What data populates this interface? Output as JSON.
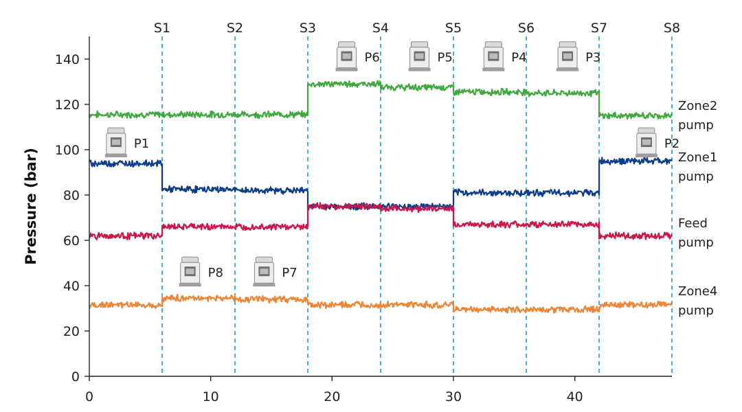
{
  "chart_data": {
    "type": "line",
    "title": "",
    "xlabel": "",
    "ylabel": "Pressure (bar)",
    "xlim": [
      0,
      48
    ],
    "ylim": [
      0,
      150
    ],
    "xticks": [
      0,
      10,
      20,
      30,
      40
    ],
    "yticks": [
      0,
      20,
      40,
      60,
      80,
      100,
      120,
      140
    ],
    "grid": false,
    "stages": [
      {
        "label": "S1",
        "x": 6
      },
      {
        "label": "S2",
        "x": 12
      },
      {
        "label": "S3",
        "x": 18
      },
      {
        "label": "S4",
        "x": 24
      },
      {
        "label": "S5",
        "x": 30
      },
      {
        "label": "S6",
        "x": 36
      },
      {
        "label": "S7",
        "x": 42
      },
      {
        "label": "S8",
        "x": 48
      }
    ],
    "series": [
      {
        "name": "Zone2 pump",
        "color": "#3fa83f",
        "segments": [
          {
            "x0": 0,
            "x1": 18,
            "y": 115.5
          },
          {
            "x0": 18,
            "x1": 24,
            "y": 129
          },
          {
            "x0": 24,
            "x1": 30,
            "y": 127.5
          },
          {
            "x0": 30,
            "x1": 36,
            "y": 125.5
          },
          {
            "x0": 36,
            "x1": 42,
            "y": 125
          },
          {
            "x0": 42,
            "x1": 48,
            "y": 115
          }
        ],
        "label_lines": [
          "Zone2",
          "pump"
        ]
      },
      {
        "name": "Zone1 pump",
        "color": "#0c3c8c",
        "segments": [
          {
            "x0": 0,
            "x1": 6,
            "y": 94
          },
          {
            "x0": 6,
            "x1": 12,
            "y": 82.5
          },
          {
            "x0": 12,
            "x1": 18,
            "y": 82
          },
          {
            "x0": 18,
            "x1": 24,
            "y": 75
          },
          {
            "x0": 24,
            "x1": 30,
            "y": 75
          },
          {
            "x0": 30,
            "x1": 36,
            "y": 81
          },
          {
            "x0": 36,
            "x1": 42,
            "y": 81
          },
          {
            "x0": 42,
            "x1": 48,
            "y": 95
          }
        ],
        "label_lines": [
          "Zone1",
          "pump"
        ]
      },
      {
        "name": "Feed pump",
        "color": "#cc1548",
        "segments": [
          {
            "x0": 0,
            "x1": 6,
            "y": 62
          },
          {
            "x0": 6,
            "x1": 12,
            "y": 66
          },
          {
            "x0": 12,
            "x1": 18,
            "y": 66
          },
          {
            "x0": 18,
            "x1": 24,
            "y": 75
          },
          {
            "x0": 24,
            "x1": 30,
            "y": 74
          },
          {
            "x0": 30,
            "x1": 36,
            "y": 67
          },
          {
            "x0": 36,
            "x1": 42,
            "y": 67
          },
          {
            "x0": 42,
            "x1": 48,
            "y": 62
          }
        ],
        "label_lines": [
          "Feed",
          "pump"
        ]
      },
      {
        "name": "Zone4 pump",
        "color": "#ef8533",
        "segments": [
          {
            "x0": 0,
            "x1": 6,
            "y": 31.5
          },
          {
            "x0": 6,
            "x1": 12,
            "y": 34.5
          },
          {
            "x0": 12,
            "x1": 18,
            "y": 34
          },
          {
            "x0": 18,
            "x1": 24,
            "y": 31.5
          },
          {
            "x0": 24,
            "x1": 30,
            "y": 31.5
          },
          {
            "x0": 30,
            "x1": 36,
            "y": 29.5
          },
          {
            "x0": 36,
            "x1": 42,
            "y": 29.5
          },
          {
            "x0": 42,
            "x1": 48,
            "y": 31.5
          }
        ],
        "label_lines": [
          "Zone4",
          "pump"
        ]
      }
    ],
    "pump_annotations": [
      {
        "label": "P1",
        "x": 2.2,
        "y": 103
      },
      {
        "label": "P2",
        "x": 45.9,
        "y": 103
      },
      {
        "label": "P3",
        "x": 39.4,
        "y": 141
      },
      {
        "label": "P4",
        "x": 33.3,
        "y": 141
      },
      {
        "label": "P5",
        "x": 27.2,
        "y": 141
      },
      {
        "label": "P6",
        "x": 21.2,
        "y": 141
      },
      {
        "label": "P7",
        "x": 14.4,
        "y": 46
      },
      {
        "label": "P8",
        "x": 8.3,
        "y": 46
      }
    ]
  }
}
